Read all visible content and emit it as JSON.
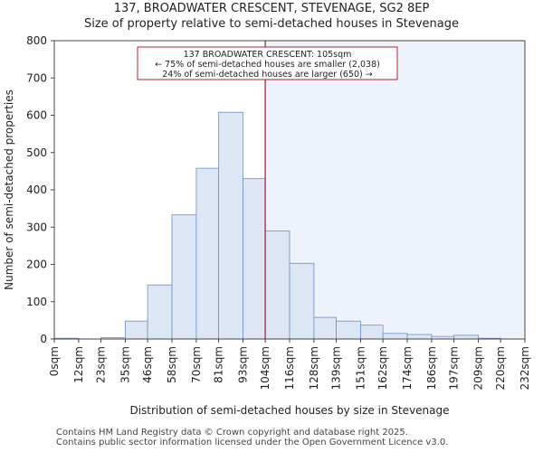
{
  "header": {
    "title": "137, BROADWATER CRESCENT, STEVENAGE, SG2 8EP",
    "subtitle": "Size of property relative to semi-detached houses in Stevenage"
  },
  "footer": {
    "line1": "Contains HM Land Registry data © Crown copyright and database right 2025.",
    "line2": "Contains public sector information licensed under the Open Government Licence v3.0."
  },
  "chart_data": {
    "type": "bar",
    "title": "Size of property relative to semi-detached houses in Stevenage",
    "xlabel": "Distribution of semi-detached houses by size in Stevenage",
    "ylabel": "Number of semi-detached properties",
    "ylim": [
      0,
      800
    ],
    "yticks": [
      0,
      100,
      200,
      300,
      400,
      500,
      600,
      700,
      800
    ],
    "bin_edges": [
      0,
      12,
      23,
      35,
      46,
      58,
      70,
      81,
      93,
      104,
      116,
      128,
      139,
      151,
      162,
      174,
      186,
      197,
      209,
      220,
      232
    ],
    "tick_labels": [
      "0sqm",
      "12sqm",
      "23sqm",
      "35sqm",
      "46sqm",
      "58sqm",
      "70sqm",
      "81sqm",
      "93sqm",
      "104sqm",
      "116sqm",
      "128sqm",
      "139sqm",
      "151sqm",
      "162sqm",
      "174sqm",
      "186sqm",
      "197sqm",
      "209sqm",
      "220sqm",
      "232sqm"
    ],
    "values": [
      2,
      0,
      4,
      48,
      145,
      333,
      458,
      608,
      430,
      290,
      203,
      58,
      48,
      37,
      15,
      12,
      7,
      10,
      2,
      0
    ],
    "marker": {
      "value": 104,
      "label": "137 BROADWATER CRESCENT: 105sqm",
      "line2": "← 75% of semi-detached houses are smaller (2,038)",
      "line3": "24% of semi-detached houses are larger (650) →"
    },
    "colors": {
      "bar_fill": "#dce6f5",
      "bar_stroke": "#6f8fc4",
      "marker_line": "#b22232",
      "highlight_bg": "#eef2fb",
      "axis": "#444444"
    },
    "grid": false
  }
}
